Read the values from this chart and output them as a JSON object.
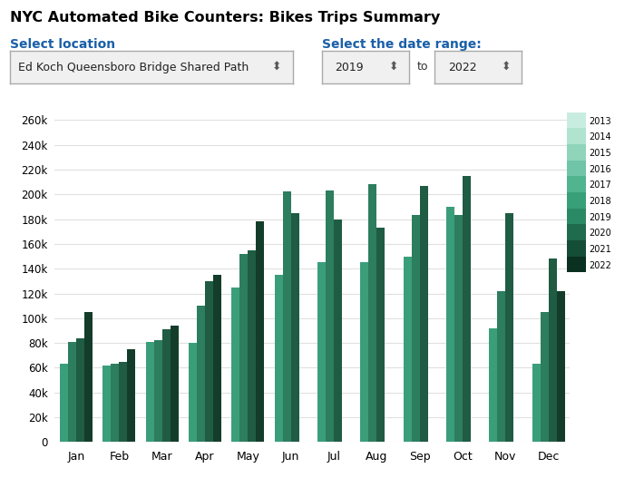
{
  "title": "NYC Automated Bike Counters: Bikes Trips Summary",
  "select_location_label": "Select location",
  "location_value": "Ed Koch Queensboro Bridge Shared Path",
  "select_date_label": "Select the date range:",
  "date_from": "2019",
  "date_to": "2022",
  "months": [
    "Jan",
    "Feb",
    "Mar",
    "Apr",
    "May",
    "Jun",
    "Jul",
    "Aug",
    "Sep",
    "Oct",
    "Nov",
    "Dec"
  ],
  "years": [
    2019,
    2020,
    2021,
    2022
  ],
  "data": {
    "Jan": [
      63000,
      81000,
      84000,
      105000
    ],
    "Feb": [
      62000,
      63000,
      65000,
      75000
    ],
    "Mar": [
      81000,
      82000,
      91000,
      94000
    ],
    "Apr": [
      80000,
      110000,
      130000,
      135000
    ],
    "May": [
      125000,
      152000,
      155000,
      178000
    ],
    "Jun": [
      135000,
      202000,
      185000,
      0
    ],
    "Jul": [
      145000,
      203000,
      180000,
      0
    ],
    "Aug": [
      145000,
      208000,
      173000,
      0
    ],
    "Sep": [
      150000,
      183000,
      207000,
      0
    ],
    "Oct": [
      190000,
      183000,
      215000,
      0
    ],
    "Nov": [
      92000,
      122000,
      185000,
      0
    ],
    "Dec": [
      63000,
      105000,
      148000,
      122000
    ]
  },
  "bar_colors": {
    "2019": "#3a9e7a",
    "2020": "#2d7d5f",
    "2021": "#1f5c43",
    "2022": "#133d2a"
  },
  "legend_years": [
    "2013",
    "2014",
    "2015",
    "2016",
    "2017",
    "2018",
    "2019",
    "2020",
    "2021",
    "2022"
  ],
  "legend_colors": [
    "#c8ede0",
    "#b0e4d0",
    "#90d4bc",
    "#70c4a8",
    "#50b490",
    "#38a078",
    "#2a8a65",
    "#1e6b4e",
    "#144d38",
    "#0a3022"
  ],
  "ylim": [
    0,
    270000
  ],
  "yticks": [
    0,
    20000,
    40000,
    60000,
    80000,
    100000,
    120000,
    140000,
    160000,
    180000,
    200000,
    220000,
    240000,
    260000
  ],
  "background_color": "#ffffff",
  "grid_color": "#e0e0e0",
  "title_color": "#000000",
  "label_color": "#1a5fa8"
}
